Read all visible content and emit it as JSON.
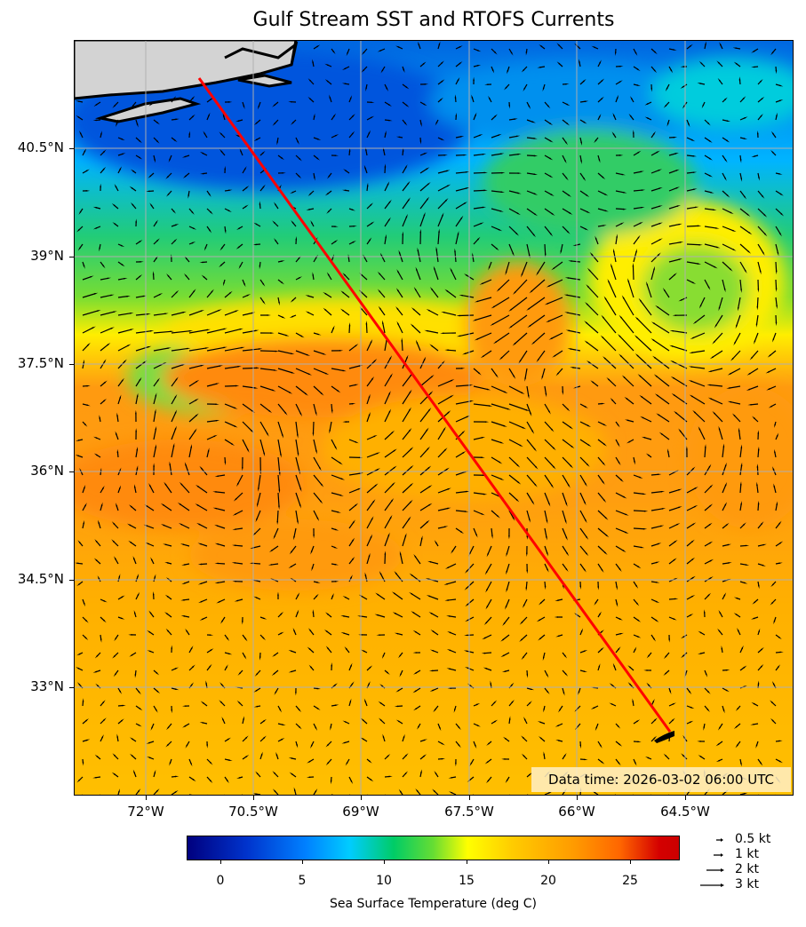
{
  "title": "Gulf Stream SST and RTOFS Currents",
  "data_time": "Data time: 2026-03-02 06:00 UTC",
  "lat_labels": [
    "40.5°N",
    "39°N",
    "37.5°N",
    "36°N",
    "34.5°N",
    "33°N"
  ],
  "lon_labels": [
    "72°W",
    "70.5°W",
    "69°W",
    "67.5°W",
    "66°W",
    "64.5°W"
  ],
  "colorbar": {
    "title": "Sea Surface Temperature (deg C)",
    "ticks": [
      "0",
      "5",
      "10",
      "15",
      "20",
      "25"
    ]
  },
  "arrow_key": [
    "0.5 kt",
    "1 kt",
    "2 kt",
    "3 kt"
  ],
  "colors": {
    "route": "#ff0000",
    "land": "#d3d3d3",
    "grid": "#b0b0b0"
  }
}
